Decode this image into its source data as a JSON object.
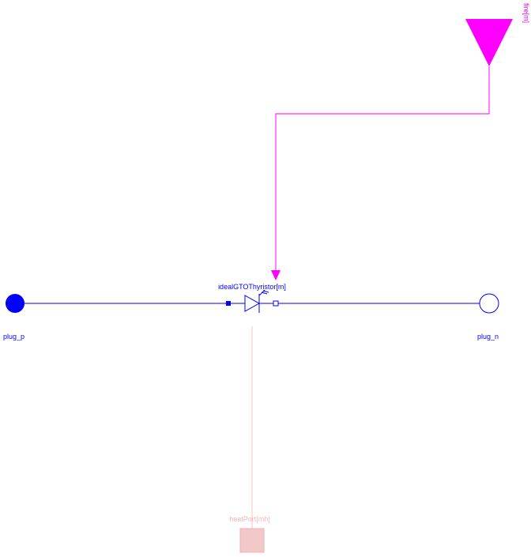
{
  "components": {
    "thyristor": {
      "label": "idealGTOThyristor[m]"
    },
    "plug_p": {
      "label": "plug_p"
    },
    "plug_n": {
      "label": "plug_n"
    },
    "fire": {
      "label": "fire[m]"
    },
    "heat_port": {
      "label": "heatPort[mh]"
    }
  },
  "colors": {
    "electric": "#0000ff",
    "signal": "#ff00ff",
    "heat": "#f2c8c8",
    "heat_text": "#f4b8b8"
  }
}
